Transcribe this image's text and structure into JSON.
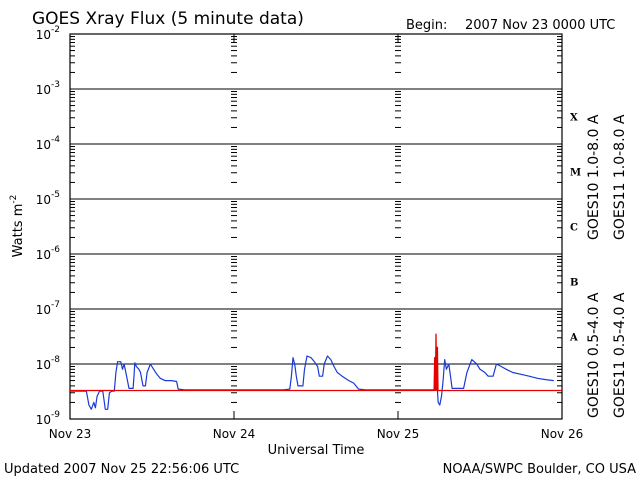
{
  "header": {
    "title": "GOES Xray Flux (5 minute data)",
    "begin_label": "Begin:",
    "begin_value": "2007 Nov 23 0000 UTC"
  },
  "footer": {
    "updated": "Updated 2007 Nov 25 22:56:06 UTC",
    "credit": "NOAA/SWPC Boulder, CO USA"
  },
  "colors": {
    "goes10_long": "#7b2fbe",
    "goes11_long": "#e60000",
    "goes10_short": "#e6a800",
    "goes11_short": "#1a3ad6"
  },
  "chart_data": {
    "type": "line",
    "title": "GOES Xray Flux (5 minute data)",
    "xlabel": "Universal Time",
    "ylabel_base": "Watts m",
    "ylabel_exp": "-2",
    "yscale": "log",
    "ylim": [
      1e-09,
      0.01
    ],
    "xlim": [
      "2007-11-23",
      "2007-11-26"
    ],
    "grid": true,
    "x_ticks": [
      {
        "label": "Nov 23",
        "day": 0
      },
      {
        "label": "Nov 24",
        "day": 1
      },
      {
        "label": "Nov 25",
        "day": 2
      },
      {
        "label": "Nov 26",
        "day": 3
      }
    ],
    "y_ticks": [
      {
        "base": "10",
        "exp": "-2",
        "value": 0.01
      },
      {
        "base": "10",
        "exp": "-3",
        "value": 0.001
      },
      {
        "base": "10",
        "exp": "-4",
        "value": 0.0001
      },
      {
        "base": "10",
        "exp": "-5",
        "value": 1e-05
      },
      {
        "base": "10",
        "exp": "-6",
        "value": 1e-06
      },
      {
        "base": "10",
        "exp": "-7",
        "value": 1e-07
      },
      {
        "base": "10",
        "exp": "-8",
        "value": 1e-08
      },
      {
        "base": "10",
        "exp": "-9",
        "value": 1e-09
      }
    ],
    "flare_classes": [
      {
        "label": "X",
        "value": 0.000316
      },
      {
        "label": "M",
        "value": 3.16e-05
      },
      {
        "label": "C",
        "value": 3.16e-06
      },
      {
        "label": "B",
        "value": 3.16e-07
      },
      {
        "label": "A",
        "value": 3.16e-08
      }
    ],
    "legend": [
      {
        "name": "GOES10 1.0-8.0 A",
        "color": "#7b2fbe",
        "position": "right-top-inner"
      },
      {
        "name": "GOES11 1.0-8.0 A",
        "color": "#e60000",
        "position": "right-top-outer"
      },
      {
        "name": "GOES10 0.5-4.0 A",
        "color": "#e6a800",
        "position": "right-bottom-inner"
      },
      {
        "name": "GOES11 0.5-4.0 A",
        "color": "#1a3ad6",
        "position": "right-bottom-outer"
      }
    ],
    "series": [
      {
        "name": "GOES11 0.5-4.0 A",
        "color": "#1a3ad6",
        "points": [
          [
            0.0,
            3.2e-09
          ],
          [
            0.1,
            3.2e-09
          ],
          [
            0.115,
            1.8e-09
          ],
          [
            0.13,
            1.5e-09
          ],
          [
            0.145,
            2e-09
          ],
          [
            0.155,
            1.6e-09
          ],
          [
            0.165,
            2.6e-09
          ],
          [
            0.18,
            3.2e-09
          ],
          [
            0.2,
            3.2e-09
          ],
          [
            0.215,
            1.5e-09
          ],
          [
            0.23,
            1.5e-09
          ],
          [
            0.24,
            3e-09
          ],
          [
            0.255,
            3.2e-09
          ],
          [
            0.27,
            3.2e-09
          ],
          [
            0.28,
            7e-09
          ],
          [
            0.29,
            1.1e-08
          ],
          [
            0.31,
            1.1e-08
          ],
          [
            0.32,
            8e-09
          ],
          [
            0.33,
            1e-08
          ],
          [
            0.345,
            6e-09
          ],
          [
            0.36,
            3.6e-09
          ],
          [
            0.385,
            3.6e-09
          ],
          [
            0.39,
            6e-09
          ],
          [
            0.395,
            1.05e-08
          ],
          [
            0.405,
            9e-09
          ],
          [
            0.42,
            8e-09
          ],
          [
            0.43,
            7e-09
          ],
          [
            0.445,
            4e-09
          ],
          [
            0.46,
            4e-09
          ],
          [
            0.47,
            7e-09
          ],
          [
            0.49,
            1e-08
          ],
          [
            0.51,
            8e-09
          ],
          [
            0.53,
            6.5e-09
          ],
          [
            0.55,
            5.5e-09
          ],
          [
            0.58,
            5e-09
          ],
          [
            0.62,
            5e-09
          ],
          [
            0.65,
            4.8e-09
          ],
          [
            0.66,
            3.5e-09
          ],
          [
            0.7,
            3.4e-09
          ],
          [
            0.8,
            3.4e-09
          ],
          [
            0.9,
            3.4e-09
          ],
          [
            1.0,
            3.4e-09
          ],
          [
            1.1,
            3.4e-09
          ],
          [
            1.3,
            3.4e-09
          ],
          [
            1.34,
            3.5e-09
          ],
          [
            1.35,
            6e-09
          ],
          [
            1.36,
            1.3e-08
          ],
          [
            1.37,
            1e-08
          ],
          [
            1.38,
            6e-09
          ],
          [
            1.39,
            4e-09
          ],
          [
            1.42,
            4e-09
          ],
          [
            1.43,
            8e-09
          ],
          [
            1.445,
            1.4e-08
          ],
          [
            1.47,
            1.3e-08
          ],
          [
            1.49,
            1.1e-08
          ],
          [
            1.51,
            9e-09
          ],
          [
            1.52,
            6e-09
          ],
          [
            1.54,
            6e-09
          ],
          [
            1.55,
            1e-08
          ],
          [
            1.57,
            1.4e-08
          ],
          [
            1.59,
            1.2e-08
          ],
          [
            1.61,
            9e-09
          ],
          [
            1.63,
            7e-09
          ],
          [
            1.66,
            6e-09
          ],
          [
            1.7,
            5e-09
          ],
          [
            1.73,
            4.5e-09
          ],
          [
            1.76,
            3.5e-09
          ],
          [
            1.8,
            3.4e-09
          ],
          [
            1.9,
            3.4e-09
          ],
          [
            2.0,
            3.4e-09
          ],
          [
            2.1,
            3.4e-09
          ],
          [
            2.22,
            3.4e-09
          ],
          [
            2.235,
            6e-09
          ],
          [
            2.245,
            2e-09
          ],
          [
            2.255,
            1.8e-09
          ],
          [
            2.265,
            2.6e-09
          ],
          [
            2.275,
            5e-09
          ],
          [
            2.285,
            1.2e-08
          ],
          [
            2.295,
            8e-09
          ],
          [
            2.31,
            1e-08
          ],
          [
            2.32,
            6e-09
          ],
          [
            2.33,
            3.6e-09
          ],
          [
            2.4,
            3.6e-09
          ],
          [
            2.42,
            7e-09
          ],
          [
            2.45,
            1.2e-08
          ],
          [
            2.48,
            1e-08
          ],
          [
            2.5,
            8e-09
          ],
          [
            2.53,
            7e-09
          ],
          [
            2.55,
            6e-09
          ],
          [
            2.58,
            6e-09
          ],
          [
            2.6,
            1e-08
          ],
          [
            2.63,
            9e-09
          ],
          [
            2.66,
            8e-09
          ],
          [
            2.7,
            7e-09
          ],
          [
            2.75,
            6.5e-09
          ],
          [
            2.8,
            6e-09
          ],
          [
            2.85,
            5.5e-09
          ],
          [
            2.9,
            5.2e-09
          ],
          [
            2.95,
            5e-09
          ]
        ]
      },
      {
        "name": "GOES11 1.0-8.0 A",
        "color": "#e60000",
        "points": [
          [
            0.0,
            3.3e-09
          ],
          [
            0.5,
            3.3e-09
          ],
          [
            1.0,
            3.3e-09
          ],
          [
            1.5,
            3.3e-09
          ],
          [
            2.0,
            3.3e-09
          ],
          [
            2.22,
            3.3e-09
          ],
          [
            2.224,
            1.3e-08
          ],
          [
            2.228,
            3.3e-09
          ],
          [
            2.232,
            3.5e-08
          ],
          [
            2.236,
            3.3e-09
          ],
          [
            2.24,
            2e-08
          ],
          [
            2.244,
            3.3e-09
          ],
          [
            2.5,
            3.3e-09
          ],
          [
            3.0,
            3.3e-09
          ]
        ]
      }
    ]
  }
}
